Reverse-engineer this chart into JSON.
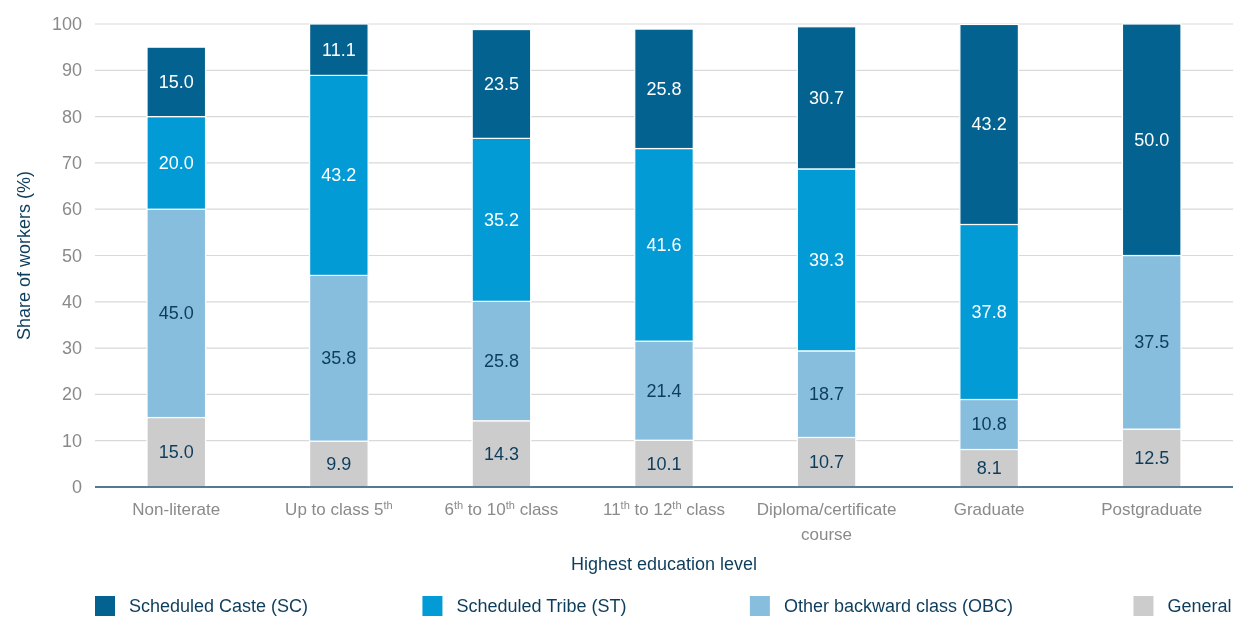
{
  "chart_data": {
    "type": "bar",
    "stacked": true,
    "xlabel": "Highest education level",
    "ylabel": "Share of workers (%)",
    "categories": [
      "Non-literate",
      "Up to class 5$^{th}$",
      "6$^{th}$ to 10$^{th}$ class",
      "11$^{th}$ to 12$^{th}$ class",
      "Diploma/certificate course",
      "Graduate",
      "Postgraduate"
    ],
    "series": [
      {
        "name": "General",
        "color": "#cccccc",
        "values": [
          15.0,
          9.9,
          14.3,
          10.1,
          10.7,
          8.1,
          12.5
        ],
        "value_labels": [
          "15.0",
          "9.9",
          "14.3",
          "10.1",
          "10.7",
          "8.1",
          "12.5"
        ]
      },
      {
        "name": "Other backward class (OBC)",
        "color": "#88bedd",
        "values": [
          45.0,
          35.8,
          25.8,
          21.4,
          18.7,
          10.8,
          37.5
        ],
        "value_labels": [
          "45.0",
          "35.8",
          "25.8",
          "21.4",
          "18.7",
          "10.8",
          "37.5"
        ]
      },
      {
        "name": "Scheduled Tribe (ST)",
        "color": "#039bd5",
        "values": [
          20.0,
          43.2,
          35.2,
          41.6,
          39.3,
          37.8,
          null
        ],
        "value_labels": [
          "20.0",
          "43.2",
          "35.2",
          "41.6",
          "39.3",
          "37.8",
          null
        ]
      },
      {
        "name": "Scheduled Caste (SC)",
        "color": "#03628f",
        "values": [
          15.0,
          11.1,
          23.5,
          25.8,
          30.7,
          43.2,
          50.0
        ],
        "value_labels": [
          "15.0",
          "11.1",
          "23.5",
          "25.8",
          "30.7",
          "43.2",
          "50.0"
        ]
      }
    ],
    "ylim": [
      0,
      100
    ],
    "yticks": [
      0,
      10,
      20,
      30,
      40,
      50,
      60,
      70,
      80,
      90,
      100
    ],
    "grid": "y",
    "legend": "bottom"
  }
}
